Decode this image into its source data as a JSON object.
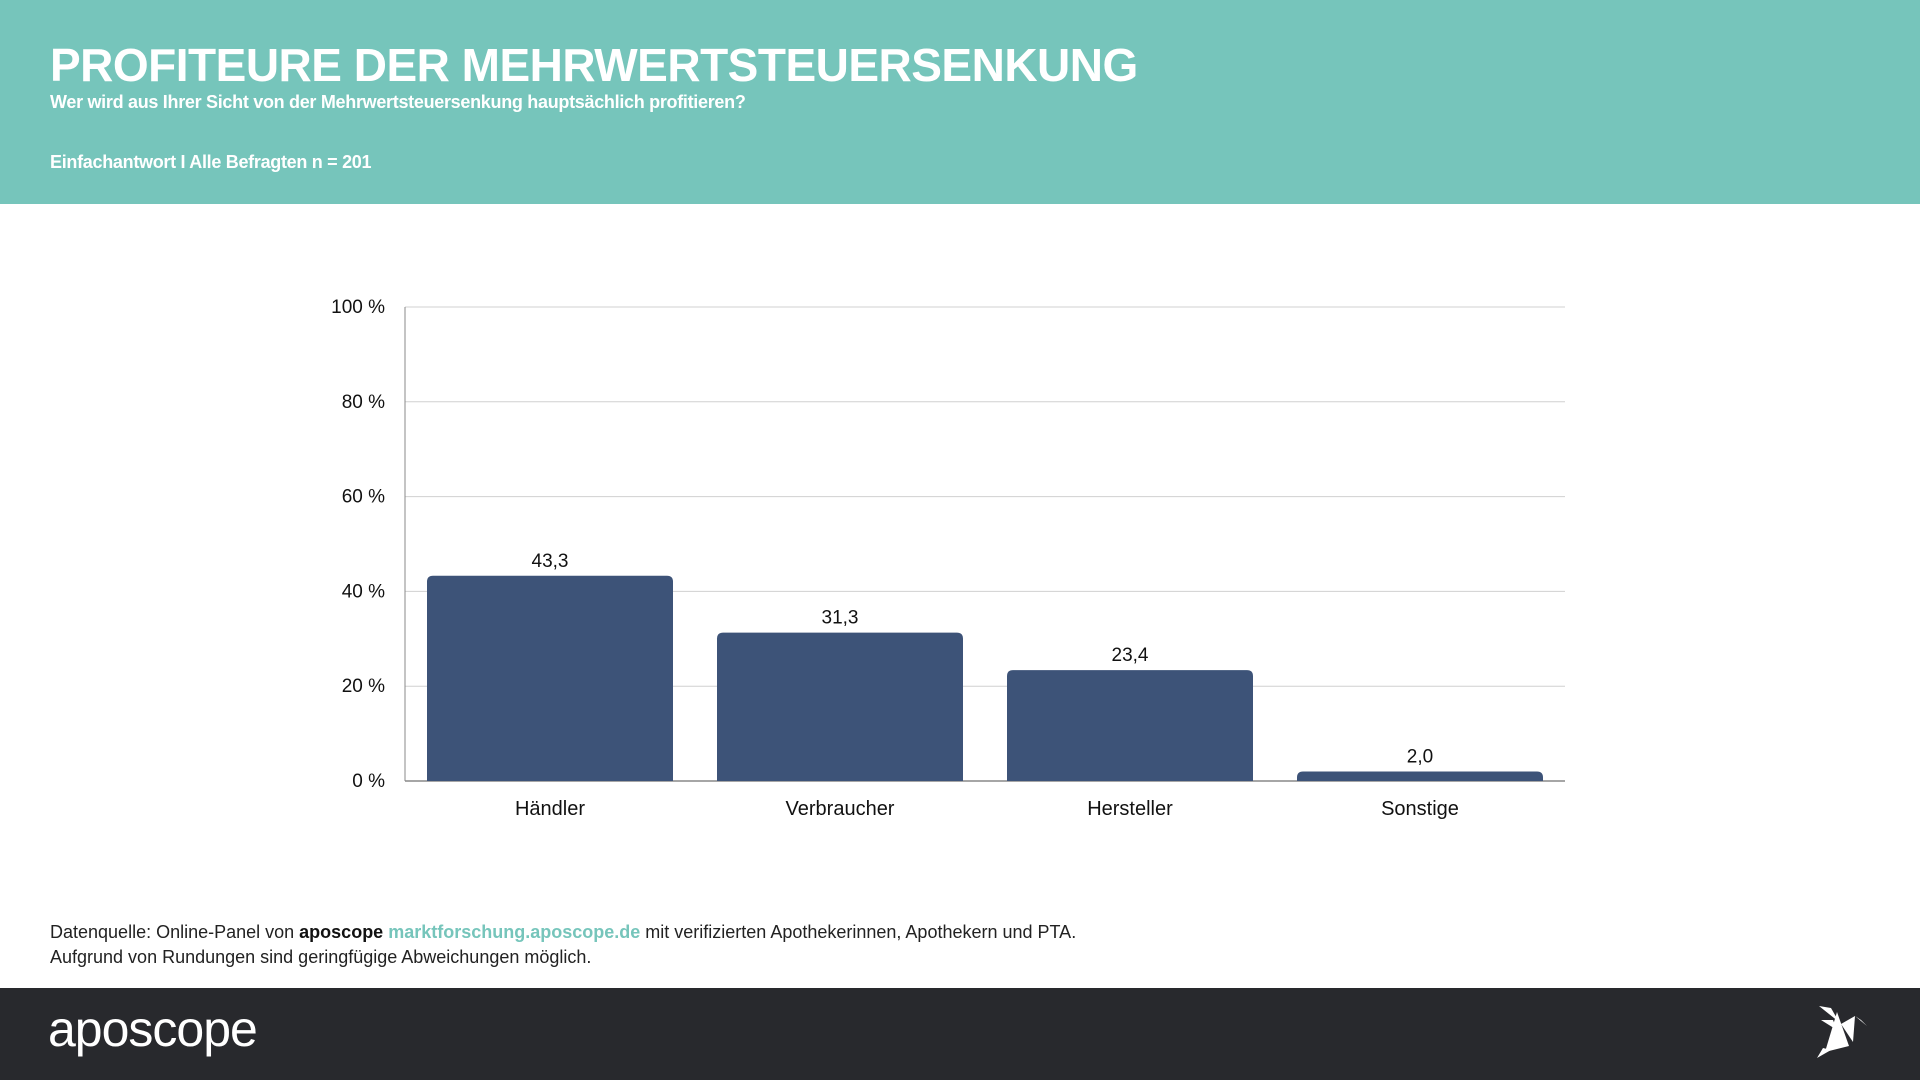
{
  "header": {
    "title": "PROFITEURE DER MEHRWERTSTEUERSENKUNG",
    "subtitle": "Wer wird aus Ihrer Sicht von der Mehrwertsteuersenkung hauptsächlich profitieren?",
    "meta": "Einfachantwort I Alle Befragten n = 201"
  },
  "chart_data": {
    "type": "bar",
    "title": "",
    "xlabel": "",
    "ylabel": "",
    "categories": [
      "Händler",
      "Verbraucher",
      "Hersteller",
      "Sonstige"
    ],
    "values": [
      43.3,
      31.3,
      23.4,
      2.0
    ],
    "value_labels": [
      "43,3",
      "31,3",
      "23,4",
      "2,0"
    ],
    "ylim": [
      0,
      100
    ],
    "yticks": [
      0,
      20,
      40,
      60,
      80,
      100
    ],
    "ytick_labels": [
      "0 %",
      "20 %",
      "40 %",
      "60 %",
      "80 %",
      "100 %"
    ],
    "grid": true,
    "bar_color": "#3d5378"
  },
  "source": {
    "prefix": "Datenquelle: Online-Panel von ",
    "brand": "aposcope",
    "link": "marktforschung.aposcope.de",
    "suffix": " mit verifizierten Apothekerinnen, Apothekern und PTA.",
    "note": "Aufgrund von Rundungen sind geringfügige Abweichungen möglich."
  },
  "footer": {
    "logo": "aposcope"
  },
  "colors": {
    "accent": "#76c5bb",
    "footer": "#28292d",
    "bar": "#3d5378"
  }
}
